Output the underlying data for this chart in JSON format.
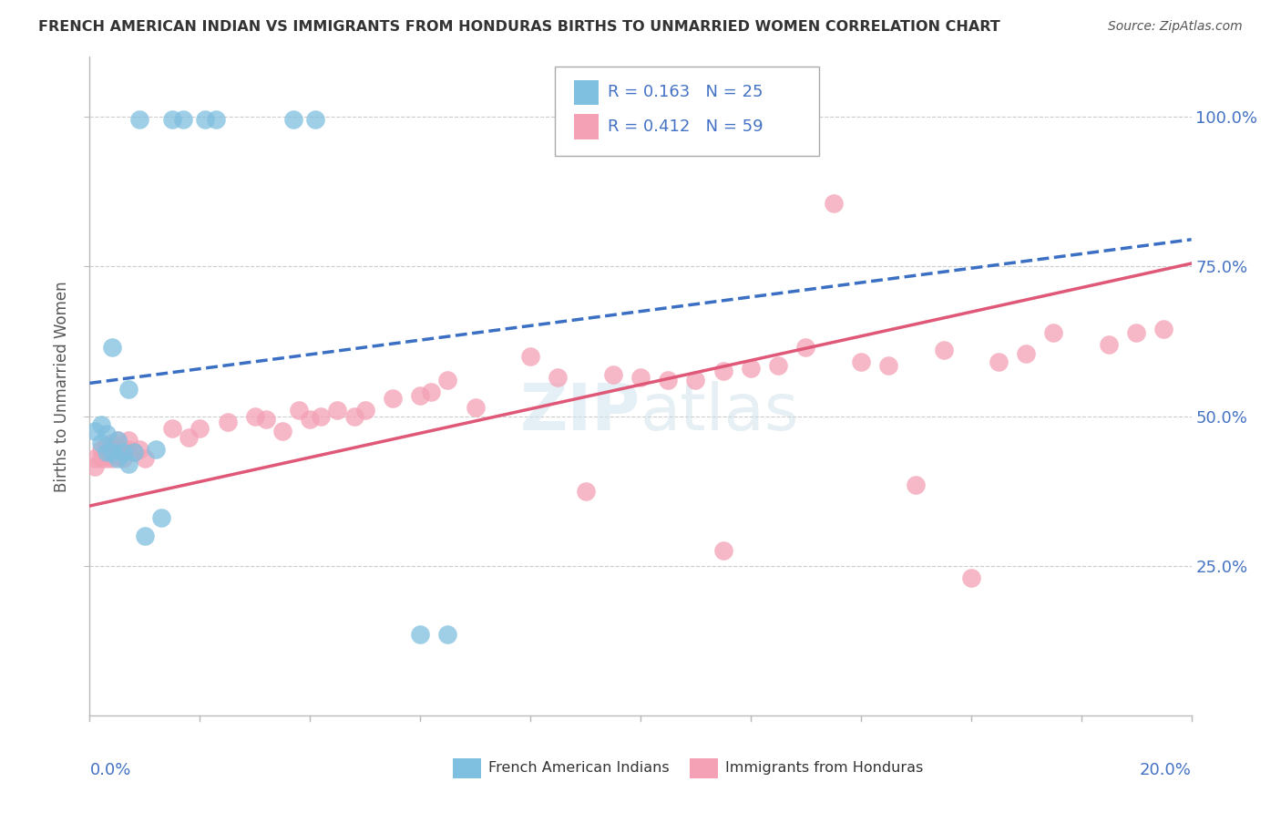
{
  "title": "FRENCH AMERICAN INDIAN VS IMMIGRANTS FROM HONDURAS BIRTHS TO UNMARRIED WOMEN CORRELATION CHART",
  "source": "Source: ZipAtlas.com",
  "ylabel": "Births to Unmarried Women",
  "y_ticks": [
    "25.0%",
    "50.0%",
    "75.0%",
    "100.0%"
  ],
  "y_tick_vals": [
    0.25,
    0.5,
    0.75,
    1.0
  ],
  "blue_color": "#7fbfdf",
  "pink_color": "#f4a0b5",
  "blue_line_color": "#3a6fc4",
  "pink_line_color": "#e05878",
  "blue_line_x": [
    0.0,
    0.2
  ],
  "blue_line_y": [
    0.555,
    0.795
  ],
  "pink_line_x": [
    0.0,
    0.2
  ],
  "pink_line_y": [
    0.35,
    0.755
  ],
  "blue_points_x": [
    0.009,
    0.015,
    0.017,
    0.021,
    0.023,
    0.037,
    0.041,
    0.004,
    0.007,
    0.001,
    0.002,
    0.003,
    0.005,
    0.002,
    0.003,
    0.004,
    0.005,
    0.006,
    0.007,
    0.008,
    0.012,
    0.013,
    0.06,
    0.065,
    0.01
  ],
  "blue_points_y": [
    0.995,
    0.995,
    0.995,
    0.995,
    0.995,
    0.995,
    0.995,
    0.615,
    0.545,
    0.475,
    0.455,
    0.44,
    0.43,
    0.485,
    0.47,
    0.44,
    0.46,
    0.44,
    0.42,
    0.44,
    0.445,
    0.33,
    0.135,
    0.135,
    0.3
  ],
  "pink_points_x": [
    0.001,
    0.001,
    0.002,
    0.002,
    0.003,
    0.003,
    0.004,
    0.004,
    0.005,
    0.005,
    0.006,
    0.006,
    0.007,
    0.007,
    0.008,
    0.009,
    0.01,
    0.015,
    0.018,
    0.02,
    0.025,
    0.03,
    0.032,
    0.035,
    0.038,
    0.04,
    0.042,
    0.045,
    0.048,
    0.05,
    0.055,
    0.06,
    0.062,
    0.065,
    0.07,
    0.08,
    0.085,
    0.09,
    0.095,
    0.1,
    0.105,
    0.11,
    0.115,
    0.12,
    0.125,
    0.13,
    0.135,
    0.14,
    0.145,
    0.15,
    0.155,
    0.16,
    0.165,
    0.17,
    0.175,
    0.185,
    0.19,
    0.195,
    0.115
  ],
  "pink_points_y": [
    0.415,
    0.43,
    0.43,
    0.445,
    0.43,
    0.45,
    0.43,
    0.455,
    0.445,
    0.46,
    0.445,
    0.43,
    0.445,
    0.46,
    0.44,
    0.445,
    0.43,
    0.48,
    0.465,
    0.48,
    0.49,
    0.5,
    0.495,
    0.475,
    0.51,
    0.495,
    0.5,
    0.51,
    0.5,
    0.51,
    0.53,
    0.535,
    0.54,
    0.56,
    0.515,
    0.6,
    0.565,
    0.375,
    0.57,
    0.565,
    0.56,
    0.56,
    0.575,
    0.58,
    0.585,
    0.615,
    0.855,
    0.59,
    0.585,
    0.385,
    0.61,
    0.23,
    0.59,
    0.605,
    0.64,
    0.62,
    0.64,
    0.645,
    0.275
  ],
  "xlim": [
    0.0,
    0.2
  ],
  "ylim": [
    0.0,
    1.1
  ],
  "figsize": [
    14.06,
    8.92
  ],
  "dpi": 100
}
